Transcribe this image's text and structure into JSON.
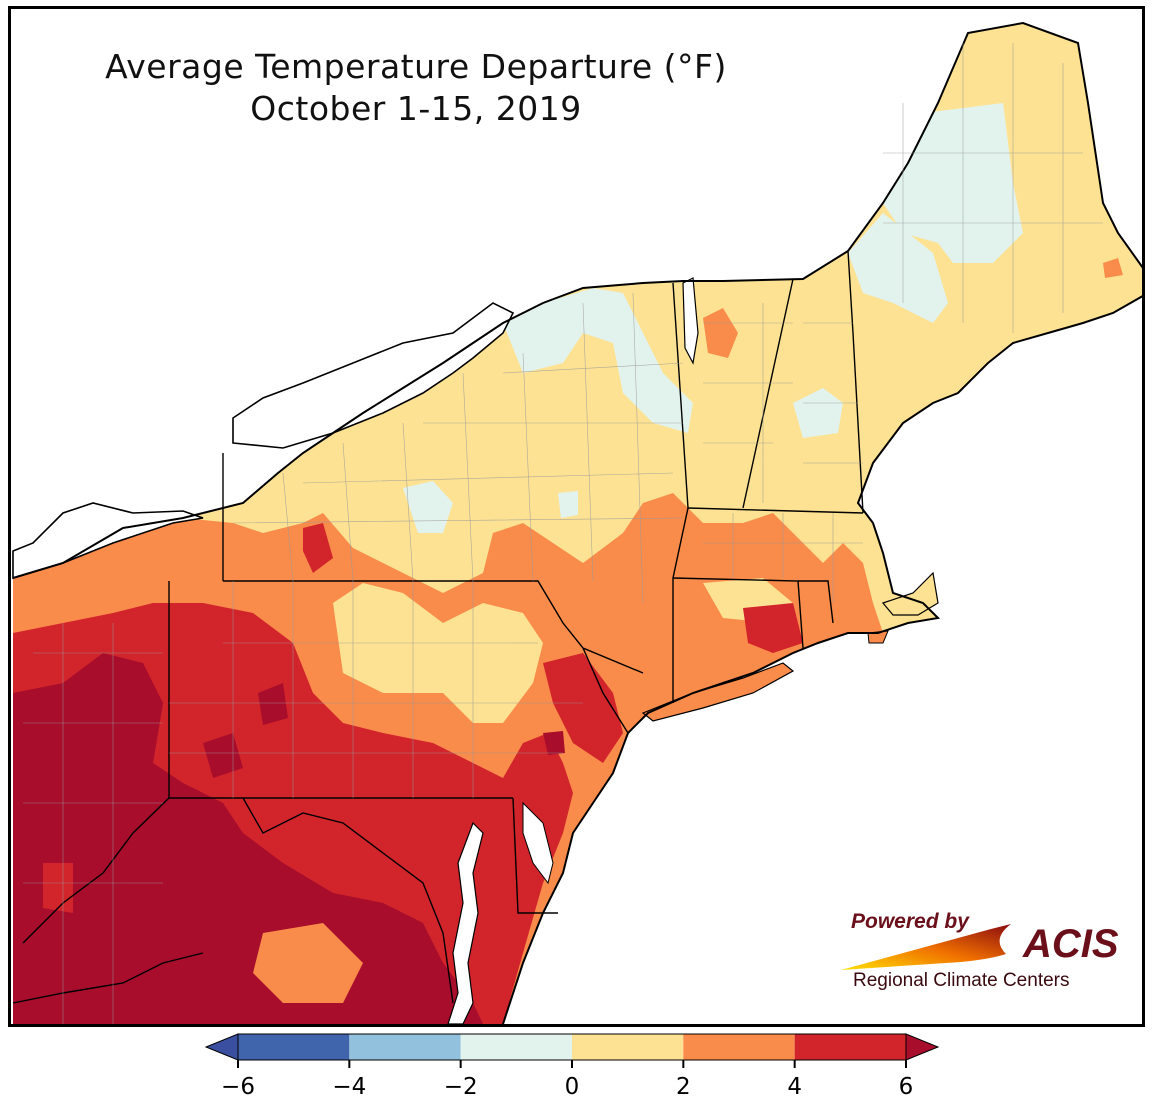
{
  "title": {
    "line1": "Average Temperature Departure (°F)",
    "line2": "October 1-15, 2019"
  },
  "legend": {
    "ticks": [
      "−6",
      "−4",
      "−2",
      "0",
      "2",
      "4",
      "6"
    ],
    "bins": [
      {
        "from": -6,
        "to": -4,
        "color": "#4065ad"
      },
      {
        "from": -4,
        "to": -2,
        "color": "#92c1de"
      },
      {
        "from": -2,
        "to": 0,
        "color": "#e2f3ee"
      },
      {
        "from": 0,
        "to": 2,
        "color": "#fde293"
      },
      {
        "from": 2,
        "to": 4,
        "color": "#f98b4b"
      },
      {
        "from": 4,
        "to": 6,
        "color": "#d2242b"
      }
    ],
    "under_color": "#3b4fa0",
    "over_color": "#a80d2c"
  },
  "logo": {
    "powered": "Powered by",
    "name": "ACIS",
    "sub": "Regional Climate Centers"
  },
  "colors": {
    "lake": "#ffffff",
    "ocean": "#ffffff",
    "border": "#000000",
    "county": "#9a9a9a",
    "deep_red": "#a80d2c"
  }
}
